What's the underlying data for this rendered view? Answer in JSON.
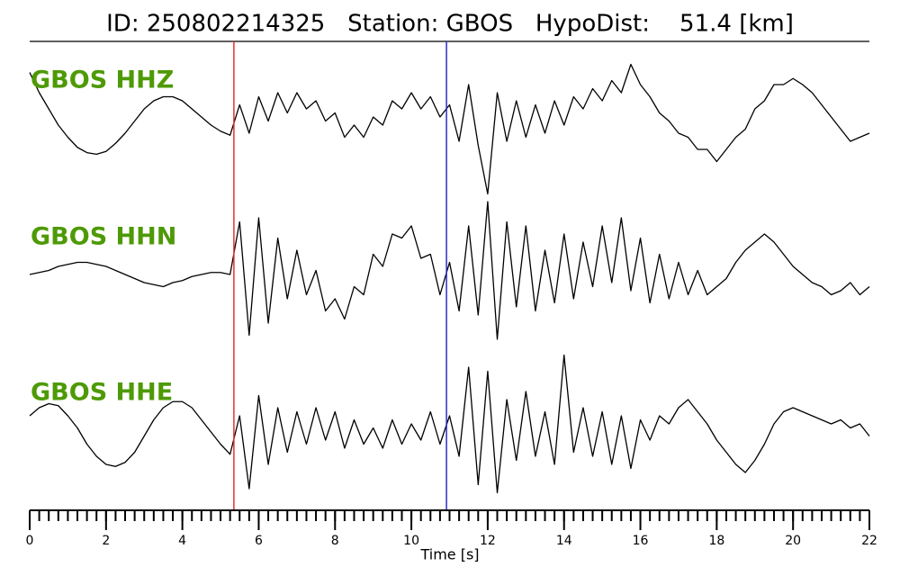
{
  "chart_data": {
    "type": "seismogram",
    "title": "ID: 250802214325   Station: GBOS   HypoDist:    51.4 [km]",
    "xlabel": "Time [s]",
    "xlim": [
      0,
      22
    ],
    "xticks": [
      0,
      2,
      4,
      6,
      8,
      10,
      12,
      14,
      16,
      18,
      20,
      22
    ],
    "x": [
      0,
      0.25,
      0.5,
      0.75,
      1,
      1.25,
      1.5,
      1.75,
      2,
      2.25,
      2.5,
      2.75,
      3,
      3.25,
      3.5,
      3.75,
      4,
      4.25,
      4.5,
      4.75,
      5,
      5.25,
      5.5,
      5.75,
      6,
      6.25,
      6.5,
      6.75,
      7,
      7.25,
      7.5,
      7.75,
      8,
      8.25,
      8.5,
      8.75,
      9,
      9.25,
      9.5,
      9.75,
      10,
      10.25,
      10.5,
      10.75,
      11,
      11.25,
      11.5,
      11.75,
      12,
      12.25,
      12.5,
      12.75,
      13,
      13.25,
      13.5,
      13.75,
      14,
      14.25,
      14.5,
      14.75,
      15,
      15.25,
      15.5,
      15.75,
      16,
      16.25,
      16.5,
      16.75,
      17,
      17.25,
      17.5,
      17.75,
      18,
      18.25,
      18.5,
      18.75,
      19,
      19.25,
      19.5,
      19.75,
      20,
      20.25,
      20.5,
      20.75,
      21,
      21.25,
      21.5,
      21.75,
      22
    ],
    "label_color": "#4e9a06",
    "markers": [
      {
        "x": 5.35,
        "color": "#e8302a"
      },
      {
        "x": 10.92,
        "color": "#2b2bc8"
      }
    ],
    "series": [
      {
        "name": "GBOS HHZ",
        "color": "#000000",
        "values": [
          1.1,
          0.6,
          0.2,
          -0.2,
          -0.5,
          -0.75,
          -0.88,
          -0.92,
          -0.85,
          -0.65,
          -0.4,
          -0.1,
          0.2,
          0.4,
          0.5,
          0.5,
          0.4,
          0.2,
          0,
          -0.2,
          -0.35,
          -0.45,
          0.3,
          -0.4,
          0.5,
          -0.1,
          0.6,
          0.1,
          0.6,
          0.2,
          0.4,
          -0.1,
          0.1,
          -0.5,
          -0.2,
          -0.5,
          0,
          -0.2,
          0.4,
          0.2,
          0.6,
          0.2,
          0.5,
          0,
          0.3,
          -0.6,
          0.8,
          -0.7,
          -1.9,
          0.6,
          -0.6,
          0.4,
          -0.5,
          0.3,
          -0.4,
          0.4,
          -0.2,
          0.5,
          0.2,
          0.7,
          0.4,
          0.9,
          0.6,
          1.3,
          0.8,
          0.5,
          0.1,
          -0.1,
          -0.4,
          -0.5,
          -0.8,
          -0.8,
          -1.1,
          -0.8,
          -0.5,
          -0.3,
          0.2,
          0.4,
          0.8,
          0.8,
          0.95,
          0.8,
          0.6,
          0.3,
          0,
          -0.3,
          -0.6,
          -0.5,
          -0.4
        ]
      },
      {
        "name": "GBOS HHN",
        "color": "#000000",
        "values": [
          0,
          0.05,
          0.1,
          0.2,
          0.25,
          0.3,
          0.3,
          0.25,
          0.2,
          0.1,
          0,
          -0.1,
          -0.2,
          -0.25,
          -0.3,
          -0.2,
          -0.15,
          -0.05,
          0,
          0.05,
          0.05,
          0,
          1.3,
          -1.5,
          1.4,
          -1.2,
          0.9,
          -0.6,
          0.6,
          -0.5,
          0.1,
          -0.9,
          -0.6,
          -1.1,
          -0.3,
          -0.5,
          0.5,
          0.2,
          1.0,
          0.9,
          1.2,
          0.4,
          0.5,
          -0.5,
          0.3,
          -0.9,
          1.2,
          -1.0,
          1.8,
          -1.6,
          1.3,
          -0.8,
          1.2,
          -0.9,
          0.6,
          -0.7,
          1.0,
          -0.6,
          0.8,
          -0.3,
          1.2,
          -0.2,
          1.4,
          -0.4,
          0.9,
          -0.7,
          0.5,
          -0.6,
          0.3,
          -0.5,
          0.1,
          -0.5,
          -0.3,
          -0.1,
          0.3,
          0.6,
          0.8,
          1.0,
          0.8,
          0.5,
          0.2,
          0,
          -0.2,
          -0.3,
          -0.5,
          -0.4,
          -0.2,
          -0.5,
          -0.3
        ]
      },
      {
        "name": "GBOS HHE",
        "color": "#000000",
        "values": [
          0.4,
          0.6,
          0.7,
          0.65,
          0.4,
          0.1,
          -0.3,
          -0.6,
          -0.8,
          -0.85,
          -0.75,
          -0.5,
          -0.1,
          0.3,
          0.6,
          0.75,
          0.75,
          0.6,
          0.3,
          0,
          -0.3,
          -0.55,
          0.4,
          -1.4,
          0.9,
          -0.8,
          0.6,
          -0.5,
          0.5,
          -0.3,
          0.6,
          -0.2,
          0.5,
          -0.4,
          0.3,
          -0.3,
          0.1,
          -0.4,
          0.3,
          -0.3,
          0.2,
          -0.2,
          0.5,
          -0.3,
          0.4,
          -0.6,
          1.6,
          -1.3,
          1.5,
          -1.5,
          0.8,
          -0.7,
          1.0,
          -0.6,
          0.5,
          -0.8,
          1.9,
          -0.5,
          0.6,
          -0.6,
          0.5,
          -0.8,
          0.4,
          -0.9,
          0.3,
          -0.2,
          0.4,
          0.2,
          0.6,
          0.8,
          0.5,
          0.2,
          -0.2,
          -0.5,
          -0.8,
          -1.0,
          -0.7,
          -0.3,
          0.2,
          0.5,
          0.6,
          0.5,
          0.4,
          0.3,
          0.2,
          0.3,
          0.1,
          0.2,
          -0.1
        ]
      }
    ]
  }
}
